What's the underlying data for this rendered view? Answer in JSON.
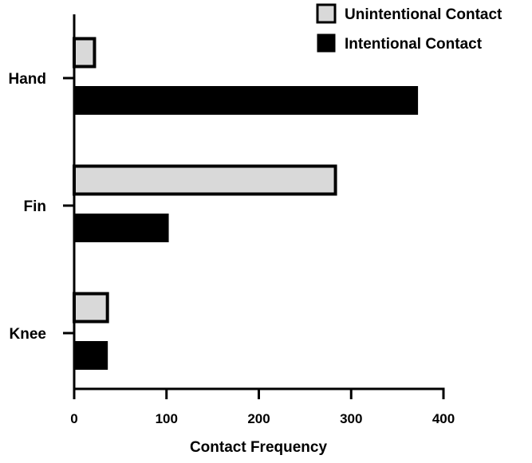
{
  "chart_data": {
    "type": "bar",
    "orientation": "horizontal",
    "categories": [
      "Hand",
      "Fin",
      "Knee"
    ],
    "series": [
      {
        "name": "Unintentional Contact",
        "values": [
          22,
          283,
          36
        ],
        "color": "#d9d9d9"
      },
      {
        "name": "Intentional Contact",
        "values": [
          372,
          102,
          36
        ],
        "color": "#000000"
      }
    ],
    "xlabel": "Contact Frequency",
    "ylabel": "",
    "xlim": [
      0,
      400
    ],
    "xticks": [
      "0",
      "100",
      "200",
      "300",
      "400"
    ],
    "grid": false,
    "legend_position": "top-right"
  }
}
